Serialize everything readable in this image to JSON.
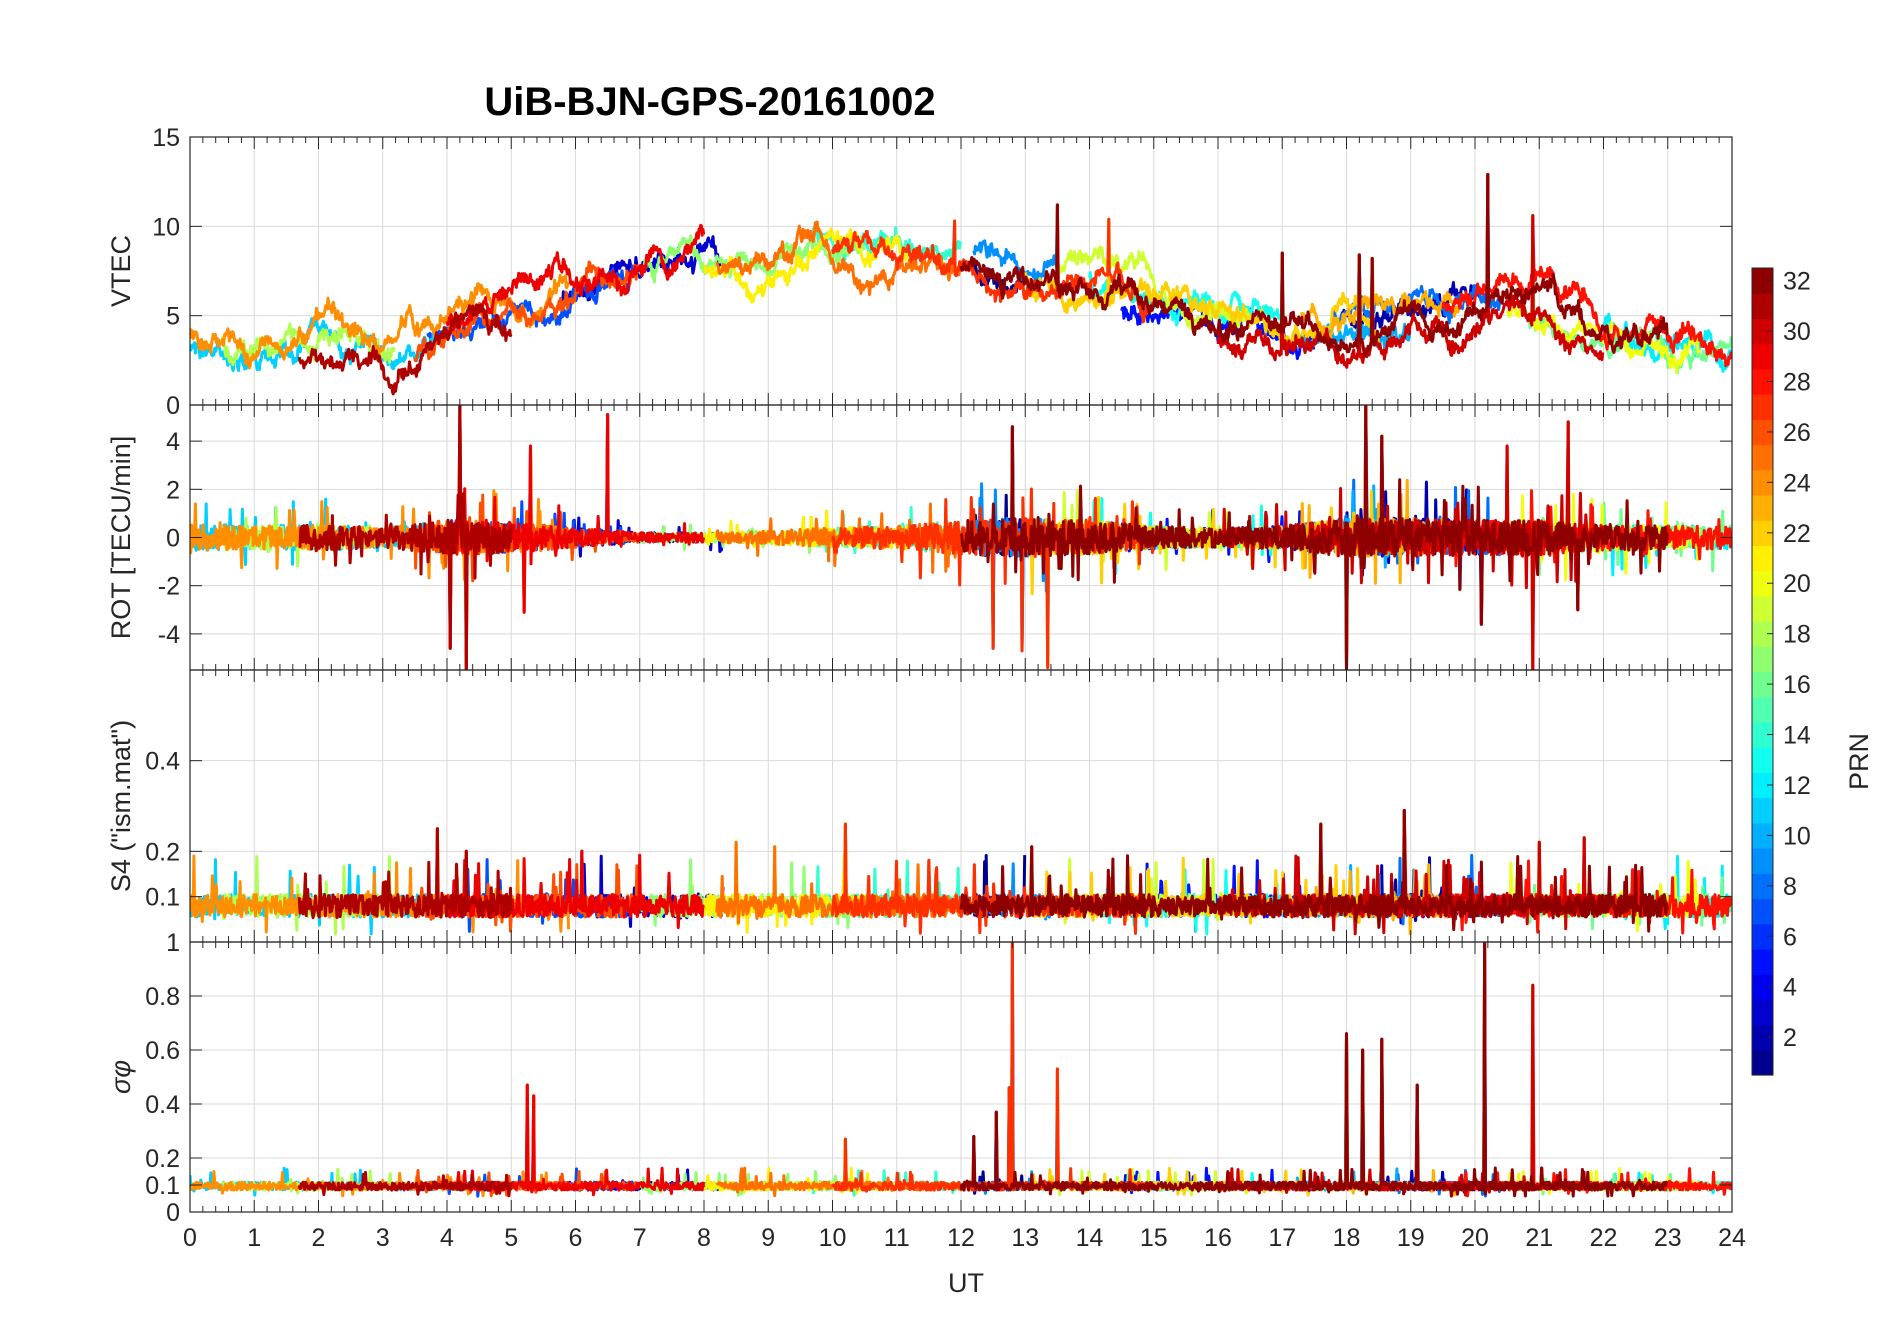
{
  "chart_data": {
    "type": "line",
    "title": "UiB-BJN-GPS-20161002",
    "xlabel": "UT",
    "xlim": [
      0,
      24
    ],
    "xticks": [
      "0",
      "1",
      "2",
      "3",
      "4",
      "5",
      "6",
      "7",
      "8",
      "9",
      "10",
      "11",
      "12",
      "13",
      "14",
      "15",
      "16",
      "17",
      "18",
      "19",
      "20",
      "21",
      "22",
      "23",
      "24"
    ],
    "panels": [
      {
        "id": "vtec",
        "ylabel": "VTEC",
        "ylim": [
          0,
          15
        ],
        "yticks": [
          "0",
          "5",
          "10",
          "15"
        ],
        "anchors": [
          [
            0,
            3.4
          ],
          [
            1,
            3.0
          ],
          [
            2,
            3.4
          ],
          [
            3,
            2.6
          ],
          [
            4,
            4.2
          ],
          [
            5,
            5.0
          ],
          [
            6,
            5.6
          ],
          [
            7,
            7.4
          ],
          [
            8,
            8.2
          ],
          [
            9,
            8.6
          ],
          [
            10,
            8.9
          ],
          [
            11,
            8.4
          ],
          [
            12,
            7.8
          ],
          [
            13,
            7.2
          ],
          [
            14,
            6.6
          ],
          [
            15,
            5.6
          ],
          [
            16,
            4.6
          ],
          [
            17,
            4.3
          ],
          [
            18,
            4.6
          ],
          [
            19,
            5.2
          ],
          [
            20,
            5.8
          ],
          [
            21,
            5.6
          ],
          [
            22,
            4.3
          ],
          [
            23,
            3.7
          ],
          [
            24,
            3.4
          ]
        ],
        "amp": 1.6,
        "spikes": [
          [
            20.2,
            12.9
          ],
          [
            13.5,
            11.2
          ],
          [
            14.3,
            10.4
          ],
          [
            11.9,
            10.3
          ],
          [
            18.2,
            8.4
          ],
          [
            18.4,
            8.2
          ],
          [
            20.9,
            10.6
          ],
          [
            17.0,
            8.5
          ]
        ]
      },
      {
        "id": "rot",
        "ylabel": "ROT [TECU/min]",
        "ylim": [
          -5.5,
          5.5
        ],
        "yticks": [
          "-4",
          "-2",
          "0",
          "2",
          "4"
        ],
        "anchors": [
          [
            0,
            0
          ],
          [
            24,
            0
          ]
        ],
        "activity": [
          [
            0,
            0.7
          ],
          [
            1,
            0.6
          ],
          [
            2,
            0.7
          ],
          [
            3,
            0.5
          ],
          [
            4,
            0.9
          ],
          [
            5,
            0.8
          ],
          [
            6,
            0.5
          ],
          [
            7,
            0.25
          ],
          [
            8,
            0.25
          ],
          [
            9,
            0.35
          ],
          [
            10,
            0.5
          ],
          [
            11,
            0.6
          ],
          [
            12,
            0.9
          ],
          [
            13,
            1.0
          ],
          [
            14,
            0.9
          ],
          [
            15,
            0.6
          ],
          [
            16,
            0.5
          ],
          [
            17,
            0.6
          ],
          [
            18,
            1.0
          ],
          [
            19,
            1.0
          ],
          [
            20,
            0.9
          ],
          [
            21,
            0.9
          ],
          [
            22,
            0.7
          ],
          [
            23,
            0.6
          ],
          [
            24,
            0.6
          ]
        ],
        "spikes": [
          [
            4.2,
            5.5
          ],
          [
            4.3,
            -5.5
          ],
          [
            4.05,
            -4.6
          ],
          [
            5.3,
            3.8
          ],
          [
            5.2,
            -3.1
          ],
          [
            6.5,
            5.1
          ],
          [
            12.5,
            -4.6
          ],
          [
            12.8,
            4.6
          ],
          [
            12.95,
            -4.7
          ],
          [
            13.35,
            -5.4
          ],
          [
            18.0,
            -5.5
          ],
          [
            18.3,
            5.5
          ],
          [
            18.55,
            4.2
          ],
          [
            20.1,
            -3.6
          ],
          [
            20.9,
            -5.5
          ],
          [
            21.45,
            4.8
          ],
          [
            21.6,
            -3.0
          ],
          [
            20.5,
            3.8
          ]
        ]
      },
      {
        "id": "s4",
        "ylabel": "S4 (\"ism.mat\")",
        "ylim": [
          0,
          0.6
        ],
        "yticks": [
          "0.1",
          "0.2",
          "0.4"
        ],
        "anchors": [
          [
            0,
            0.07
          ],
          [
            24,
            0.07
          ]
        ],
        "amp": 0.05,
        "spikes": [
          [
            3.85,
            0.25
          ],
          [
            4.3,
            0.2
          ],
          [
            6.1,
            0.2
          ],
          [
            8.5,
            0.22
          ],
          [
            9.1,
            0.21
          ],
          [
            10.2,
            0.26
          ],
          [
            17.6,
            0.26
          ],
          [
            18.9,
            0.29
          ],
          [
            21.0,
            0.22
          ],
          [
            21.7,
            0.23
          ],
          [
            13.1,
            0.21
          ],
          [
            11.5,
            0.18
          ]
        ]
      },
      {
        "id": "sigphi",
        "ylabel": "σφ",
        "ylim": [
          0,
          1
        ],
        "yticks": [
          "0",
          "0.1",
          "0.2",
          "0.4",
          "0.6",
          "0.8",
          "1"
        ],
        "anchors": [
          [
            0,
            0.09
          ],
          [
            24,
            0.09
          ]
        ],
        "amp": 0.03,
        "spikes": [
          [
            5.25,
            0.47
          ],
          [
            5.35,
            0.43
          ],
          [
            12.8,
            1.0
          ],
          [
            12.75,
            0.46
          ],
          [
            12.55,
            0.37
          ],
          [
            13.5,
            0.53
          ],
          [
            18.0,
            0.66
          ],
          [
            18.25,
            0.6
          ],
          [
            18.55,
            0.64
          ],
          [
            19.1,
            0.47
          ],
          [
            20.15,
            1.0
          ],
          [
            20.9,
            0.84
          ],
          [
            10.2,
            0.27
          ],
          [
            12.2,
            0.28
          ]
        ]
      }
    ],
    "series": [
      {
        "prn": 1,
        "start": 12.2,
        "end": 13.0
      },
      {
        "prn": 2,
        "start": 17.9,
        "end": 20.1
      },
      {
        "prn": 3,
        "start": 5.8,
        "end": 8.3
      },
      {
        "prn": 5,
        "start": 14.5,
        "end": 17.5
      },
      {
        "prn": 7,
        "start": 3.7,
        "end": 6.9
      },
      {
        "prn": 8,
        "start": 17.8,
        "end": 20.4
      },
      {
        "prn": 9,
        "start": 12.2,
        "end": 13.5
      },
      {
        "prn": 10,
        "start": 17.2,
        "end": 19.0
      },
      {
        "prn": 11,
        "start": 0.0,
        "end": 3.8
      },
      {
        "prn": 12,
        "start": 22.0,
        "end": 24.0
      },
      {
        "prn": 13,
        "start": 14.0,
        "end": 17.0
      },
      {
        "prn": 14,
        "start": 9.7,
        "end": 12.0
      },
      {
        "prn": 16,
        "start": 20.7,
        "end": 24.0
      },
      {
        "prn": 17,
        "start": 7.0,
        "end": 10.5
      },
      {
        "prn": 18,
        "start": 0.5,
        "end": 3.2
      },
      {
        "prn": 19,
        "start": 13.5,
        "end": 16.5
      },
      {
        "prn": 20,
        "start": 20.5,
        "end": 23.5
      },
      {
        "prn": 21,
        "start": 8.0,
        "end": 11.2
      },
      {
        "prn": 22,
        "start": 13.0,
        "end": 18.5
      },
      {
        "prn": 23,
        "start": 17.3,
        "end": 19.8
      },
      {
        "prn": 24,
        "start": 0.0,
        "end": 5.9
      },
      {
        "prn": 25,
        "start": 8.2,
        "end": 12.0
      },
      {
        "prn": 26,
        "start": 3.5,
        "end": 7.0
      },
      {
        "prn": 27,
        "start": 10.0,
        "end": 15.0
      },
      {
        "prn": 28,
        "start": 19.5,
        "end": 24.0
      },
      {
        "prn": 29,
        "start": 4.0,
        "end": 8.0
      },
      {
        "prn": 30,
        "start": 16.0,
        "end": 22.0
      },
      {
        "prn": 31,
        "start": 1.7,
        "end": 5.0
      },
      {
        "prn": 32,
        "start": 12.0,
        "end": 23.0
      }
    ],
    "colorbar": {
      "label": "PRN",
      "range": [
        1,
        32
      ],
      "ticks": [
        "2",
        "4",
        "6",
        "8",
        "10",
        "12",
        "14",
        "16",
        "18",
        "20",
        "22",
        "24",
        "26",
        "28",
        "30",
        "32"
      ],
      "colormap": "jet"
    },
    "grid": true
  }
}
